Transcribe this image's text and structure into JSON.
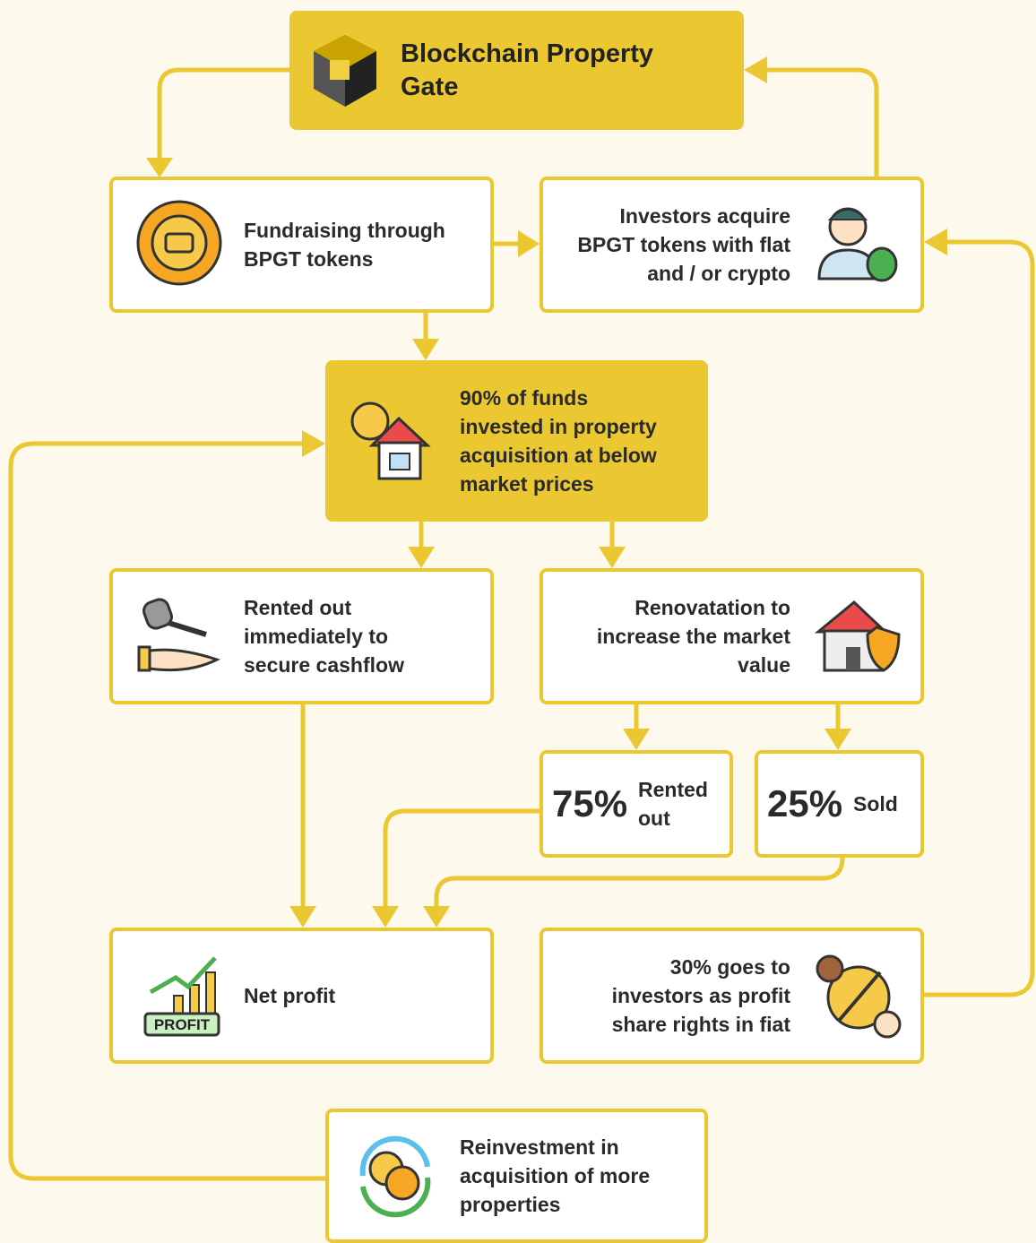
{
  "title": {
    "lines": [
      "Blockchain Property",
      "Gate"
    ]
  },
  "nodes": [
    {
      "lines": [
        "Fundraising through",
        "BPGT tokens"
      ]
    },
    {
      "lines": [
        "Investors acquire",
        "BPGT tokens with flat",
        "and / or crypto"
      ]
    },
    {
      "lines": [
        "90% of funds",
        "invested in property",
        "acquisition at below",
        "market prices"
      ]
    },
    {
      "lines": [
        "Rented out",
        "immediately to",
        "secure cashflow"
      ]
    },
    {
      "lines": [
        "Renovatation to",
        "increase the market",
        "value"
      ]
    },
    {
      "value": "75%",
      "lines": [
        "Rented",
        "out"
      ]
    },
    {
      "value": "25%",
      "lines": [
        "Sold"
      ]
    },
    {
      "lines": [
        "Net profit"
      ]
    },
    {
      "lines": [
        "30% goes to",
        "investors as profit",
        "share rights in fiat"
      ]
    },
    {
      "lines": [
        "Reinvestment in",
        "acquisition of more",
        "properties"
      ]
    }
  ],
  "icon_text": {
    "profit": "PROFIT"
  }
}
